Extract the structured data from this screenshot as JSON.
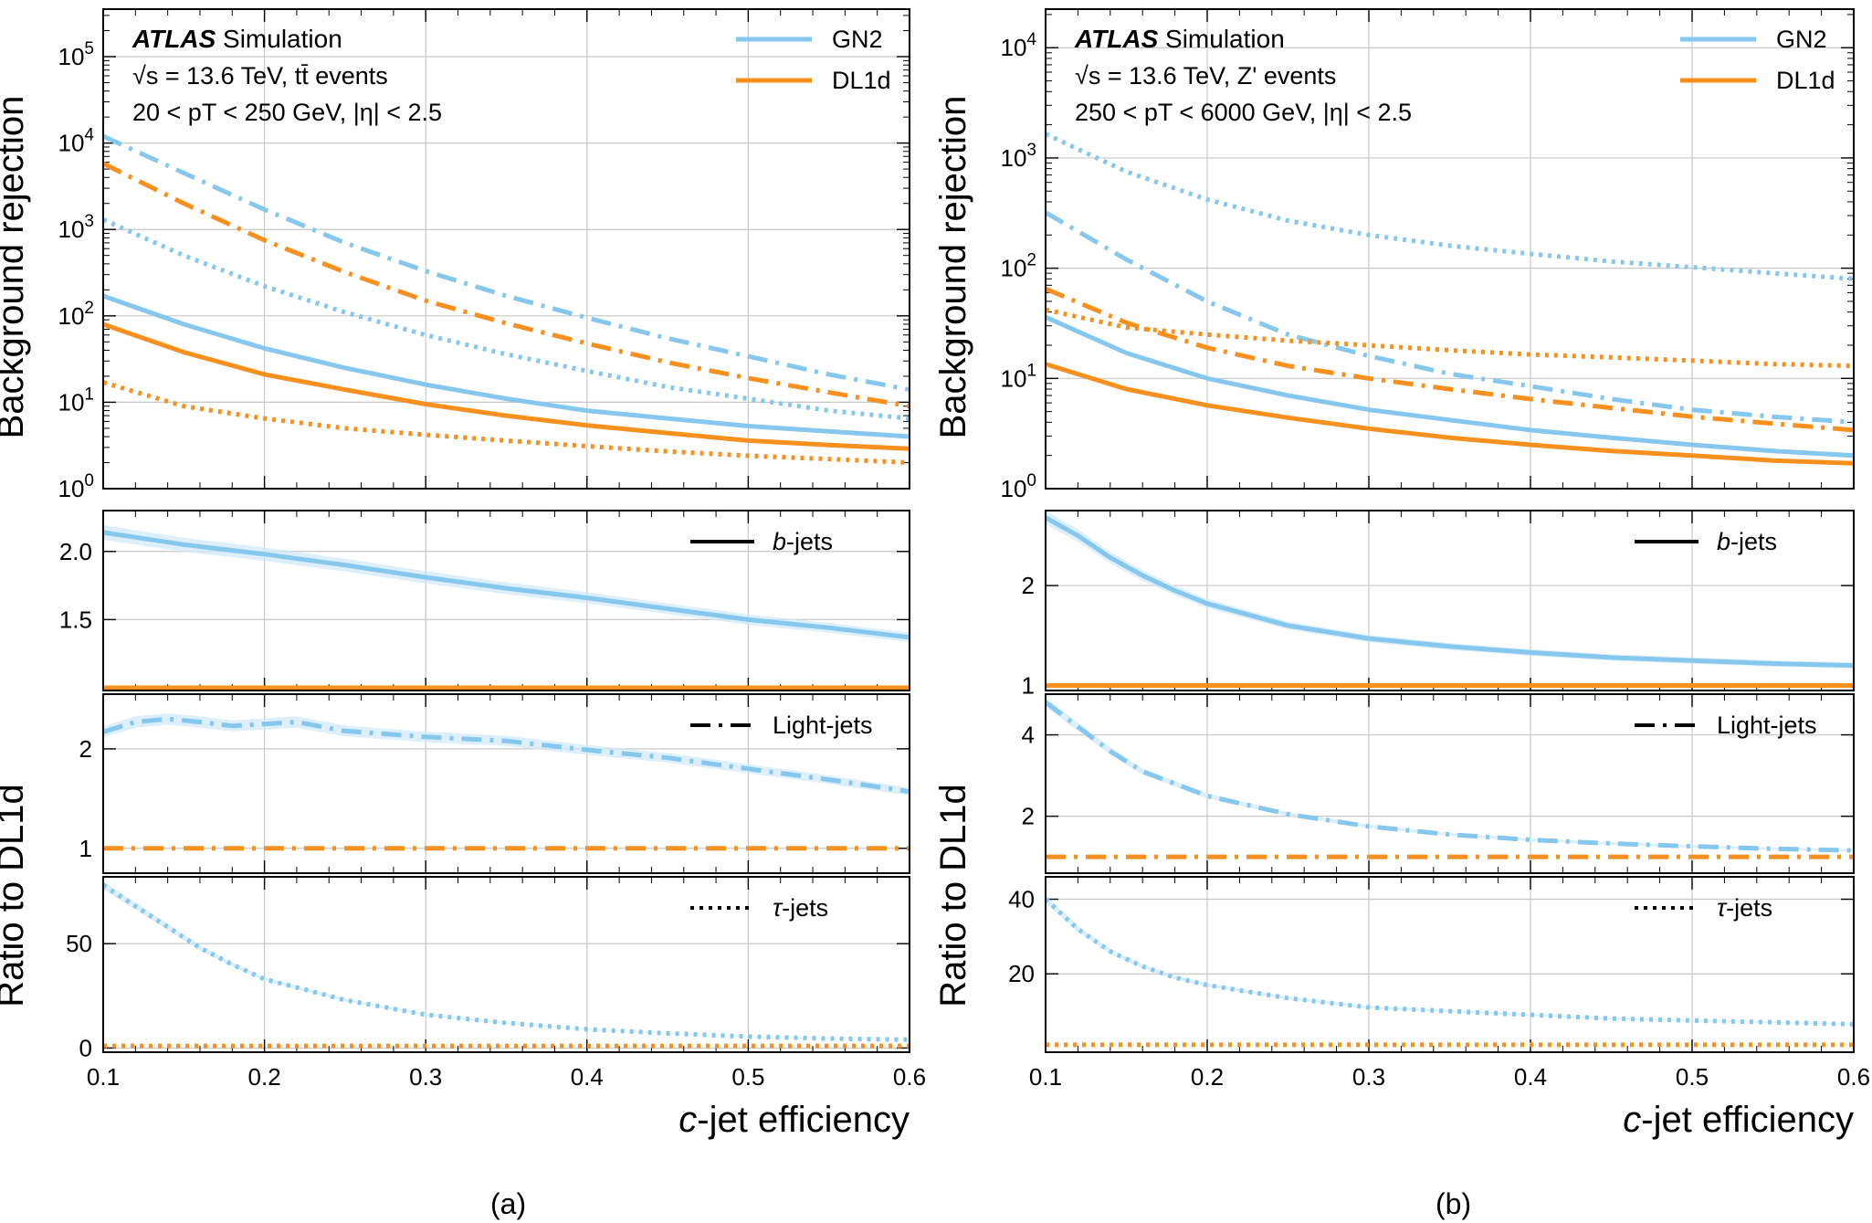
{
  "figure": {
    "captions": [
      "(a)",
      "(b)"
    ]
  },
  "colors": {
    "gn2": "#86c7ee",
    "dl1d": "#f7901e",
    "grid": "#c8c8c8",
    "band": "#cfe8f8"
  },
  "chart_data": [
    {
      "id": "a",
      "type": "line",
      "caption": "(a)",
      "xlabel_italic": "c",
      "xlabel_rest": "-jet efficiency",
      "xlim": [
        0.1,
        0.6
      ],
      "xticks": [
        0.1,
        0.2,
        0.3,
        0.4,
        0.5,
        0.6
      ],
      "xtick_labels": [
        "0.1",
        "0.2",
        "0.3",
        "0.4",
        "0.5",
        "0.6"
      ],
      "ylabel_top": "Background rejection",
      "ylabel_ratio": "Ratio to DL1d",
      "annotation": {
        "brand": "ATLAS",
        "label": "Simulation",
        "line2": "√s = 13.6 TeV, tt̄ events",
        "line3": "20 < pT < 250 GeV, |η| < 2.5"
      },
      "legend_models": [
        {
          "name": "GN2",
          "color": "#86c7ee"
        },
        {
          "name": "DL1d",
          "color": "#f7901e"
        }
      ],
      "top": {
        "scale": "log",
        "ylim_exp": [
          0,
          5.55
        ],
        "yticks_exp": [
          0,
          1,
          2,
          3,
          4,
          5
        ],
        "ytick_labels": [
          "10^0",
          "10^1",
          "10^2",
          "10^3",
          "10^4",
          "10^5"
        ],
        "x": [
          0.1,
          0.15,
          0.2,
          0.25,
          0.3,
          0.35,
          0.4,
          0.45,
          0.5,
          0.55,
          0.6
        ],
        "series": [
          {
            "model": "GN2",
            "flavor": "b",
            "dash": "solid",
            "values": [
              170,
              80,
              42,
              25,
              16,
              11,
              8,
              6.5,
              5.3,
              4.6,
              4.0
            ]
          },
          {
            "model": "DL1d",
            "flavor": "b",
            "dash": "solid",
            "values": [
              80,
              38,
              21,
              14,
              9.5,
              7,
              5.4,
              4.4,
              3.6,
              3.2,
              2.9
            ]
          },
          {
            "model": "GN2",
            "flavor": "light",
            "dash": "dashdot",
            "values": [
              12000,
              4500,
              1700,
              700,
              330,
              170,
              95,
              55,
              34,
              21,
              14
            ]
          },
          {
            "model": "DL1d",
            "flavor": "light",
            "dash": "dashdot",
            "values": [
              5800,
              2000,
              750,
              320,
              150,
              82,
              48,
              29,
              19,
              13,
              9
            ]
          },
          {
            "model": "GN2",
            "flavor": "tau",
            "dash": "dotted",
            "values": [
              1300,
              500,
              220,
              110,
              60,
              36,
              23,
              15,
              11,
              8,
              6.5
            ]
          },
          {
            "model": "DL1d",
            "flavor": "tau",
            "dash": "dotted",
            "values": [
              17,
              9,
              6.5,
              5,
              4.2,
              3.6,
              3.1,
              2.7,
              2.4,
              2.2,
              2.0
            ]
          }
        ]
      },
      "ratios": [
        {
          "flavor": "b",
          "legend": "b-jets",
          "legend_italic": "b",
          "legend_rest": "-jets",
          "dash": "solid",
          "ylim": [
            0.98,
            2.3
          ],
          "yticks": [
            1.5,
            2.0
          ],
          "ytick_labels": [
            "1.5",
            "2.0"
          ],
          "x": [
            0.1,
            0.15,
            0.2,
            0.25,
            0.3,
            0.35,
            0.4,
            0.45,
            0.5,
            0.55,
            0.6
          ],
          "gn2": [
            2.14,
            2.05,
            1.98,
            1.9,
            1.81,
            1.73,
            1.66,
            1.58,
            1.5,
            1.44,
            1.37
          ],
          "dl1d_ref": 1.0
        },
        {
          "flavor": "light",
          "legend": "Light-jets",
          "legend_italic": "",
          "legend_rest": "Light-jets",
          "dash": "dashdot",
          "ylim": [
            0.75,
            2.55
          ],
          "yticks": [
            1,
            2
          ],
          "ytick_labels": [
            "1",
            "2"
          ],
          "x": [
            0.1,
            0.12,
            0.14,
            0.16,
            0.18,
            0.2,
            0.22,
            0.25,
            0.3,
            0.35,
            0.4,
            0.45,
            0.5,
            0.55,
            0.6
          ],
          "gn2": [
            2.17,
            2.27,
            2.3,
            2.27,
            2.23,
            2.25,
            2.27,
            2.18,
            2.12,
            2.08,
            1.99,
            1.91,
            1.8,
            1.69,
            1.57
          ],
          "dl1d_ref": 1.0
        },
        {
          "flavor": "tau",
          "legend": "τ-jets",
          "legend_italic": "τ",
          "legend_rest": "-jets",
          "dash": "dotted",
          "ylim": [
            -2,
            82
          ],
          "yticks": [
            0,
            50
          ],
          "ytick_labels": [
            "0",
            "50"
          ],
          "x": [
            0.1,
            0.12,
            0.14,
            0.16,
            0.18,
            0.2,
            0.25,
            0.3,
            0.35,
            0.4,
            0.45,
            0.5,
            0.55,
            0.6
          ],
          "gn2": [
            78,
            68,
            58,
            48,
            40,
            33,
            23,
            16,
            12,
            9,
            7,
            5.5,
            4.5,
            4
          ],
          "dl1d_ref": 1.0
        }
      ]
    },
    {
      "id": "b",
      "type": "line",
      "caption": "(b)",
      "xlabel_italic": "c",
      "xlabel_rest": "-jet efficiency",
      "xlim": [
        0.1,
        0.6
      ],
      "xticks": [
        0.1,
        0.2,
        0.3,
        0.4,
        0.5,
        0.6
      ],
      "xtick_labels": [
        "0.1",
        "0.2",
        "0.3",
        "0.4",
        "0.5",
        "0.6"
      ],
      "ylabel_top": "Background rejection",
      "ylabel_ratio": "Ratio to DL1d",
      "annotation": {
        "brand": "ATLAS",
        "label": "Simulation",
        "line2": "√s = 13.6 TeV, Z' events",
        "line3": "250 < pT < 6000 GeV, |η| < 2.5"
      },
      "legend_models": [
        {
          "name": "GN2",
          "color": "#86c7ee"
        },
        {
          "name": "DL1d",
          "color": "#f7901e"
        }
      ],
      "top": {
        "scale": "log",
        "ylim_exp": [
          0,
          4.35
        ],
        "yticks_exp": [
          0,
          1,
          2,
          3,
          4
        ],
        "ytick_labels": [
          "10^0",
          "10^1",
          "10^2",
          "10^3",
          "10^4"
        ],
        "x": [
          0.1,
          0.15,
          0.2,
          0.25,
          0.3,
          0.35,
          0.4,
          0.45,
          0.5,
          0.55,
          0.6
        ],
        "series": [
          {
            "model": "GN2",
            "flavor": "b",
            "dash": "solid",
            "values": [
              36,
              17,
              10,
              7,
              5.2,
              4.2,
              3.4,
              2.9,
              2.5,
              2.2,
              2.0
            ]
          },
          {
            "model": "DL1d",
            "flavor": "b",
            "dash": "solid",
            "values": [
              13.5,
              8,
              5.7,
              4.4,
              3.5,
              2.9,
              2.5,
              2.2,
              2.0,
              1.8,
              1.7
            ]
          },
          {
            "model": "GN2",
            "flavor": "light",
            "dash": "dashdot",
            "values": [
              320,
              120,
              50,
              25,
              16,
              11,
              8.5,
              6.5,
              5.2,
              4.5,
              4.0
            ]
          },
          {
            "model": "DL1d",
            "flavor": "light",
            "dash": "dashdot",
            "values": [
              65,
              32,
              19,
              13,
              10,
              8,
              6.5,
              5.4,
              4.5,
              3.9,
              3.4
            ]
          },
          {
            "model": "GN2",
            "flavor": "tau",
            "dash": "dotted",
            "values": [
              1650,
              750,
              420,
              270,
              200,
              160,
              135,
              115,
              102,
              90,
              80
            ]
          },
          {
            "model": "DL1d",
            "flavor": "tau",
            "dash": "dotted",
            "values": [
              42,
              29,
              25,
              22,
              20,
              18,
              16.5,
              15.5,
              14.5,
              13.5,
              13
            ]
          }
        ]
      },
      "ratios": [
        {
          "flavor": "b",
          "legend": "b-jets",
          "legend_italic": "b",
          "legend_rest": "-jets",
          "dash": "solid",
          "ylim": [
            0.95,
            2.75
          ],
          "yticks": [
            1,
            2
          ],
          "ytick_labels": [
            "1",
            "2"
          ],
          "x": [
            0.1,
            0.12,
            0.14,
            0.16,
            0.18,
            0.2,
            0.25,
            0.3,
            0.35,
            0.4,
            0.45,
            0.5,
            0.55,
            0.6
          ],
          "gn2": [
            2.68,
            2.5,
            2.28,
            2.1,
            1.95,
            1.82,
            1.6,
            1.47,
            1.39,
            1.33,
            1.28,
            1.25,
            1.22,
            1.2
          ],
          "dl1d_ref": 1.0
        },
        {
          "flavor": "light",
          "legend": "Light-jets",
          "legend_italic": "",
          "legend_rest": "Light-jets",
          "dash": "dashdot",
          "ylim": [
            0.6,
            5.0
          ],
          "yticks": [
            2,
            4
          ],
          "ytick_labels": [
            "2",
            "4"
          ],
          "x": [
            0.1,
            0.12,
            0.14,
            0.16,
            0.18,
            0.2,
            0.25,
            0.3,
            0.35,
            0.4,
            0.45,
            0.5,
            0.55,
            0.6
          ],
          "gn2": [
            4.8,
            4.2,
            3.6,
            3.1,
            2.8,
            2.5,
            2.05,
            1.75,
            1.55,
            1.42,
            1.33,
            1.26,
            1.2,
            1.16
          ],
          "dl1d_ref": 1.0
        },
        {
          "flavor": "tau",
          "legend": "τ-jets",
          "legend_italic": "τ",
          "legend_rest": "-jets",
          "dash": "dotted",
          "ylim": [
            -1,
            46
          ],
          "yticks": [
            20,
            40
          ],
          "ytick_labels": [
            "20",
            "40"
          ],
          "x": [
            0.1,
            0.12,
            0.14,
            0.16,
            0.18,
            0.2,
            0.25,
            0.3,
            0.35,
            0.4,
            0.45,
            0.5,
            0.55,
            0.6
          ],
          "gn2": [
            40,
            32,
            26,
            22,
            19,
            17,
            13.5,
            11,
            10,
            9,
            8,
            7.5,
            7,
            6.5
          ],
          "dl1d_ref": 1.0
        }
      ]
    }
  ]
}
